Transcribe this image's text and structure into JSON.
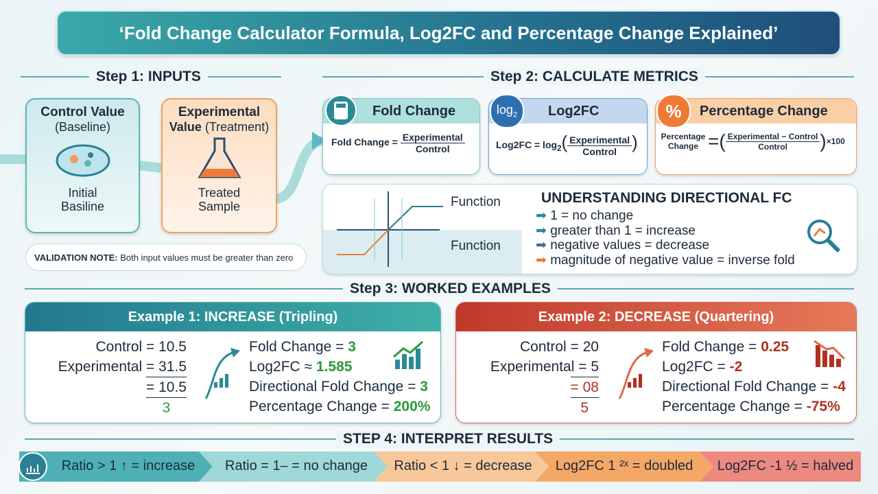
{
  "title": "‘Fold Change Calculator Formula, Log2FC and Percentage Change Explained’",
  "step1": {
    "heading": "Step 1: INPUTS",
    "control": {
      "label": "Control Value",
      "sub": "(Baseline)",
      "caption": "Initial Basiline"
    },
    "experimental": {
      "label": "Experimental",
      "label2": "Value",
      "sub": "(Treatment)",
      "caption": "Treated Sample"
    },
    "note": {
      "label": "VALIDATION NOTE:",
      "text": "Both input values must be greater than zero"
    }
  },
  "step2": {
    "heading": "Step 2: CALCULATE METRICS",
    "cards": [
      {
        "title": "Fold Change",
        "lhs": "Fold Change =",
        "num": "Experimental",
        "den": "Control"
      },
      {
        "icon": "log",
        "icon_sub": "2",
        "title": "Log2FC",
        "lhs": "Log2FC = log",
        "lhs_sub": "2",
        "num": "Experimental",
        "den": "Control"
      },
      {
        "icon": "%",
        "title": "Percentage Change",
        "lhs": "Percentage Change",
        "num": "Experimental − Control",
        "den": "Control",
        "tail": "×100"
      }
    ],
    "directional": {
      "graph_labels": [
        "Function",
        "Function"
      ],
      "heading": "UNDERSTANDING DIRECTIONAL FC",
      "items": [
        "1 = no change",
        "greater than 1 = increase",
        "negative values = decrease",
        "magnitude of negative value = inverse fold"
      ]
    }
  },
  "step3": {
    "heading": "Step 3: WORKED EXAMPLES",
    "examples": [
      {
        "title": "Example 1: INCREASE (Tripling)",
        "inputs": [
          "Control = 10.5",
          "Experimental = 31.5",
          "= 10.5",
          "3"
        ],
        "results": [
          [
            "Fold Change = ",
            "3"
          ],
          [
            "Log2FC ≈ ",
            "1.585"
          ],
          [
            "Directional Fold Change = ",
            "3"
          ],
          [
            "Percentage Change = ",
            "200%"
          ]
        ]
      },
      {
        "title": "Example 2: DECREASE (Quartering)",
        "inputs": [
          "Control = 20",
          "Experimental = 5",
          "= 08",
          "5"
        ],
        "results": [
          [
            "Fold Change = ",
            "0.25"
          ],
          [
            "Log2FC = ",
            "-2"
          ],
          [
            "Directional Fold Change = ",
            "-4"
          ],
          [
            "Percentage Change = ",
            "-75%"
          ]
        ]
      }
    ]
  },
  "step4": {
    "heading": "STEP 4: INTERPRET RESULTS",
    "items": [
      "Ratio > 1 ↑ = increase",
      "Ratio = 1– = no change",
      "Ratio < 1 ↓ = decrease",
      "Log2FC 1 ²ˣ = doubled",
      "Log2FC -1 ½ = halved"
    ]
  }
}
